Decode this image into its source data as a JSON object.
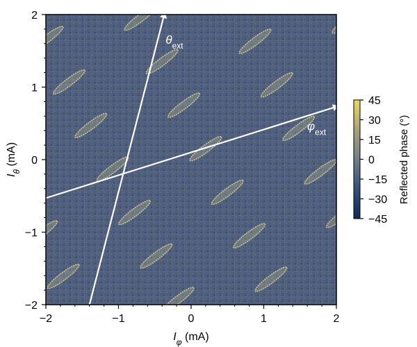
{
  "chart_data": {
    "type": "heatmap",
    "xlabel": {
      "symbol": "I",
      "sub": "φ",
      "unit": " (mA)"
    },
    "ylabel": {
      "symbol": "I",
      "sub": "θ",
      "unit": " (mA)"
    },
    "xlim": [
      -2,
      2
    ],
    "ylim": [
      -2,
      2
    ],
    "x_ticks": [
      -2,
      -1,
      0,
      1,
      2
    ],
    "y_ticks": [
      -2,
      -1,
      0,
      1,
      2
    ],
    "x_tick_labels": [
      "−2",
      "−1",
      "0",
      "1",
      "2"
    ],
    "y_tick_labels": [
      "−2",
      "−1",
      "0",
      "1",
      "2"
    ],
    "colorbar": {
      "label": "Reflected phase (°)",
      "range": [
        -45,
        45
      ],
      "ticks": [
        45,
        30,
        15,
        0,
        -15,
        -30,
        -45
      ],
      "tick_labels": [
        "45",
        "30",
        "15",
        "0",
        "−15",
        "−30",
        "−45"
      ],
      "colors": [
        "#0d2a5e",
        "#36507a",
        "#6f7f8a",
        "#a9a27a",
        "#e9d95c"
      ]
    },
    "background_color": "#4d5d7b",
    "features": {
      "shape": "ellipse",
      "color": "#d4cf8e",
      "lattice_basis_a": [
        1.28,
        0.28
      ],
      "lattice_basis_b": [
        -0.3,
        0.6
      ],
      "example_center": [
        0.2,
        0.15
      ],
      "semi_axes": [
        0.27,
        0.05
      ],
      "tilt_deg": 37
    },
    "arrows": [
      {
        "label_symbol": "θ",
        "label_sub": "ext",
        "start": [
          -1.4,
          -2.0
        ],
        "end": [
          -0.37,
          2.0
        ]
      },
      {
        "label_symbol": "φ",
        "label_sub": "ext",
        "start": [
          -2.0,
          -0.53
        ],
        "end": [
          2.0,
          0.73
        ]
      }
    ]
  }
}
